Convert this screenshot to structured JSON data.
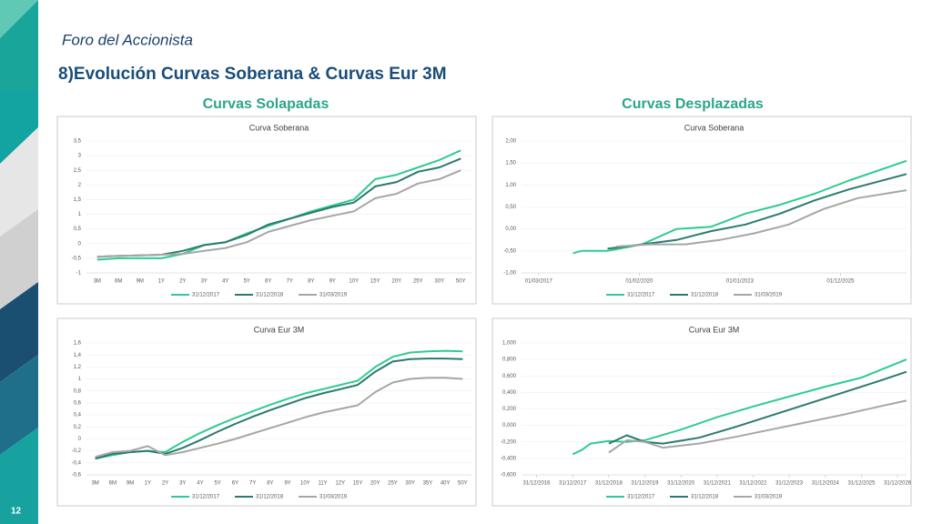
{
  "header": {
    "subtitle": "Foro del Accionista",
    "title": "8)Evolución Curvas Soberana & Curvas Eur 3M",
    "left_heading": "Curvas Solapadas",
    "right_heading": "Curvas Desplazadas",
    "page": "12"
  },
  "chart_data": [
    {
      "type": "line",
      "title": "Curva Soberana",
      "categories": [
        "3M",
        "6M",
        "9M",
        "1Y",
        "2Y",
        "3Y",
        "4Y",
        "5Y",
        "6Y",
        "7Y",
        "8Y",
        "9Y",
        "10Y",
        "15Y",
        "20Y",
        "25Y",
        "30Y",
        "50Y"
      ],
      "ylim": [
        -1,
        3.5
      ],
      "yticks": [
        -1,
        {
          "value": -0.5,
          "label": "-0,5"
        },
        0,
        {
          "value": 0.5,
          "label": "0,5"
        },
        1,
        {
          "value": 1.5,
          "label": "1,5"
        },
        2,
        {
          "value": 2.5,
          "label": "2,5"
        },
        3,
        {
          "value": 3.5,
          "label": "3,5"
        }
      ],
      "grid": true,
      "series": [
        {
          "name": "31/12/2017",
          "color": "#2ecc8f",
          "values": [
            -0.55,
            -0.5,
            -0.5,
            -0.5,
            -0.35,
            -0.05,
            0.05,
            0.35,
            0.6,
            0.85,
            1.1,
            1.3,
            1.5,
            2.2,
            2.35,
            2.6,
            2.85,
            3.18
          ]
        },
        {
          "name": "31/12/2018",
          "color": "#2b7a6f",
          "values": [
            -0.45,
            -0.42,
            -0.4,
            -0.38,
            -0.25,
            -0.05,
            0.05,
            0.3,
            0.65,
            0.85,
            1.05,
            1.25,
            1.4,
            1.95,
            2.1,
            2.45,
            2.6,
            2.9
          ]
        },
        {
          "name": "31/03/2019",
          "color": "#a6a6a6",
          "values": [
            -0.45,
            -0.42,
            -0.4,
            -0.38,
            -0.35,
            -0.25,
            -0.15,
            0.05,
            0.4,
            0.6,
            0.8,
            0.95,
            1.1,
            1.55,
            1.7,
            2.05,
            2.2,
            2.5
          ]
        }
      ]
    },
    {
      "type": "line",
      "title": "Curva Soberana",
      "xlim": [
        "2016-09-01",
        "2027-11-01"
      ],
      "xticks": [
        {
          "value": "2017-03-01",
          "label": "01/03/2017"
        },
        {
          "value": "2020-02-01",
          "label": "01/02/2020"
        },
        {
          "value": "2023-01-01",
          "label": "01/01/2023"
        },
        {
          "value": "2025-12-01",
          "label": "01/12/2025"
        }
      ],
      "ylim": [
        -1,
        2
      ],
      "yticks": [
        {
          "value": -1,
          "label": "-1,00"
        },
        {
          "value": -0.5,
          "label": "-0,50"
        },
        {
          "value": 0,
          "label": "0,00"
        },
        {
          "value": 0.5,
          "label": "0,50"
        },
        {
          "value": 1,
          "label": "1,00"
        },
        {
          "value": 1.5,
          "label": "1,50"
        },
        {
          "value": 2,
          "label": "2,00"
        }
      ],
      "grid": true,
      "series": [
        {
          "name": "31/12/2017",
          "color": "#2ecc8f",
          "x": [
            "2018-03-01",
            "2018-06-01",
            "2019-03-01",
            "2020-03-01",
            "2021-03-01",
            "2022-03-01",
            "2023-03-01",
            "2024-03-01",
            "2025-03-01",
            "2026-03-01",
            "2027-11-01"
          ],
          "values": [
            -0.55,
            -0.5,
            -0.5,
            -0.35,
            0.0,
            0.05,
            0.35,
            0.55,
            0.8,
            1.1,
            1.55
          ]
        },
        {
          "name": "31/12/2018",
          "color": "#2b7a6f",
          "x": [
            "2019-03-01",
            "2020-03-01",
            "2021-03-01",
            "2022-03-01",
            "2023-03-01",
            "2024-03-01",
            "2025-03-01",
            "2026-03-01",
            "2027-11-01"
          ],
          "values": [
            -0.45,
            -0.35,
            -0.25,
            -0.05,
            0.1,
            0.35,
            0.65,
            0.9,
            1.25
          ]
        },
        {
          "name": "31/03/2019",
          "color": "#a6a6a6",
          "x": [
            "2019-06-01",
            "2020-06-01",
            "2021-06-01",
            "2022-06-01",
            "2023-06-01",
            "2024-06-01",
            "2025-06-01",
            "2026-06-01",
            "2027-11-01"
          ],
          "values": [
            -0.4,
            -0.35,
            -0.35,
            -0.25,
            -0.1,
            0.1,
            0.45,
            0.7,
            0.88
          ]
        }
      ]
    },
    {
      "type": "line",
      "title": "Curva Eur 3M",
      "categories": [
        "3M",
        "6M",
        "9M",
        "1Y",
        "2Y",
        "3Y",
        "4Y",
        "5Y",
        "6Y",
        "7Y",
        "8Y",
        "9Y",
        "10Y",
        "11Y",
        "12Y",
        "15Y",
        "20Y",
        "25Y",
        "30Y",
        "35Y",
        "40Y",
        "50Y"
      ],
      "ylim": [
        -0.6,
        1.6
      ],
      "yticks": [
        {
          "value": -0.6,
          "label": "-0,6"
        },
        {
          "value": -0.4,
          "label": "-0,4"
        },
        {
          "value": -0.2,
          "label": "-0,2"
        },
        0,
        {
          "value": 0.2,
          "label": "0,2"
        },
        {
          "value": 0.4,
          "label": "0,4"
        },
        {
          "value": 0.6,
          "label": "0,6"
        },
        {
          "value": 0.8,
          "label": "0,8"
        },
        1,
        {
          "value": 1.2,
          "label": "1,2"
        },
        {
          "value": 1.4,
          "label": "1,4"
        },
        {
          "value": 1.6,
          "label": "1,6"
        }
      ],
      "grid": true,
      "series": [
        {
          "name": "31/12/2017",
          "color": "#2ecc8f",
          "values": [
            -0.33,
            -0.27,
            -0.22,
            -0.2,
            -0.22,
            -0.05,
            0.1,
            0.23,
            0.35,
            0.46,
            0.57,
            0.67,
            0.76,
            0.83,
            0.9,
            0.97,
            1.2,
            1.37,
            1.44,
            1.46,
            1.47,
            1.46
          ]
        },
        {
          "name": "31/12/2018",
          "color": "#2b7a6f",
          "values": [
            -0.33,
            -0.25,
            -0.22,
            -0.2,
            -0.25,
            -0.15,
            -0.02,
            0.12,
            0.25,
            0.37,
            0.48,
            0.58,
            0.68,
            0.76,
            0.83,
            0.9,
            1.12,
            1.29,
            1.33,
            1.34,
            1.34,
            1.33
          ]
        },
        {
          "name": "31/03/2019",
          "color": "#a6a6a6",
          "values": [
            -0.3,
            -0.22,
            -0.2,
            -0.12,
            -0.27,
            -0.22,
            -0.15,
            -0.08,
            0.0,
            0.09,
            0.18,
            0.27,
            0.36,
            0.44,
            0.5,
            0.56,
            0.78,
            0.94,
            1.0,
            1.02,
            1.02,
            1.0
          ]
        }
      ]
    },
    {
      "type": "line",
      "title": "Curva Eur 3M",
      "xlim": [
        "2016-08-01",
        "2027-04-01"
      ],
      "xticks": [
        {
          "value": "2016-12-31",
          "label": "31/12/2016"
        },
        {
          "value": "2017-12-31",
          "label": "31/12/2017"
        },
        {
          "value": "2018-12-31",
          "label": "31/12/2018"
        },
        {
          "value": "2019-12-31",
          "label": "31/12/2019"
        },
        {
          "value": "2020-12-31",
          "label": "31/12/2020"
        },
        {
          "value": "2021-12-31",
          "label": "31/12/2021"
        },
        {
          "value": "2022-12-31",
          "label": "31/12/2022"
        },
        {
          "value": "2023-12-31",
          "label": "31/12/2023"
        },
        {
          "value": "2024-12-31",
          "label": "31/12/2024"
        },
        {
          "value": "2025-12-31",
          "label": "31/12/2025"
        },
        {
          "value": "2026-12-31",
          "label": "31/12/2026"
        }
      ],
      "ylim": [
        -0.6,
        1.0
      ],
      "yticks": [
        {
          "value": -0.6,
          "label": "-0,600"
        },
        {
          "value": -0.4,
          "label": "-0,400"
        },
        {
          "value": -0.2,
          "label": "-0,200"
        },
        {
          "value": 0,
          "label": "0,000"
        },
        {
          "value": 0.2,
          "label": "0,200"
        },
        {
          "value": 0.4,
          "label": "0,400"
        },
        {
          "value": 0.6,
          "label": "0,600"
        },
        {
          "value": 0.8,
          "label": "0,800"
        },
        {
          "value": 1.0,
          "label": "1,000"
        }
      ],
      "grid": true,
      "series": [
        {
          "name": "31/12/2017",
          "color": "#2ecc8f",
          "x": [
            "2018-01-01",
            "2018-04-01",
            "2018-07-01",
            "2019-01-01",
            "2019-07-01",
            "2020-01-01",
            "2021-01-01",
            "2022-01-01",
            "2023-01-01",
            "2024-01-01",
            "2025-01-01",
            "2026-01-01",
            "2027-04-01"
          ],
          "values": [
            -0.35,
            -0.3,
            -0.22,
            -0.19,
            -0.2,
            -0.18,
            -0.05,
            0.1,
            0.23,
            0.35,
            0.47,
            0.58,
            0.8
          ]
        },
        {
          "name": "31/12/2018",
          "color": "#2b7a6f",
          "x": [
            "2019-01-01",
            "2019-07-01",
            "2020-01-01",
            "2020-07-01",
            "2021-07-01",
            "2022-07-01",
            "2023-07-01",
            "2024-07-01",
            "2025-07-01",
            "2026-07-01",
            "2027-04-01"
          ],
          "values": [
            -0.22,
            -0.12,
            -0.2,
            -0.22,
            -0.15,
            -0.02,
            0.12,
            0.26,
            0.4,
            0.54,
            0.65
          ]
        },
        {
          "name": "31/03/2019",
          "color": "#a6a6a6",
          "x": [
            "2019-01-01",
            "2019-07-01",
            "2020-01-01",
            "2020-07-01",
            "2021-07-01",
            "2022-07-01",
            "2023-07-01",
            "2024-07-01",
            "2025-07-01",
            "2026-07-01",
            "2027-04-01"
          ],
          "values": [
            -0.33,
            -0.18,
            -0.2,
            -0.27,
            -0.22,
            -0.14,
            -0.05,
            0.04,
            0.13,
            0.23,
            0.3
          ]
        }
      ]
    }
  ]
}
